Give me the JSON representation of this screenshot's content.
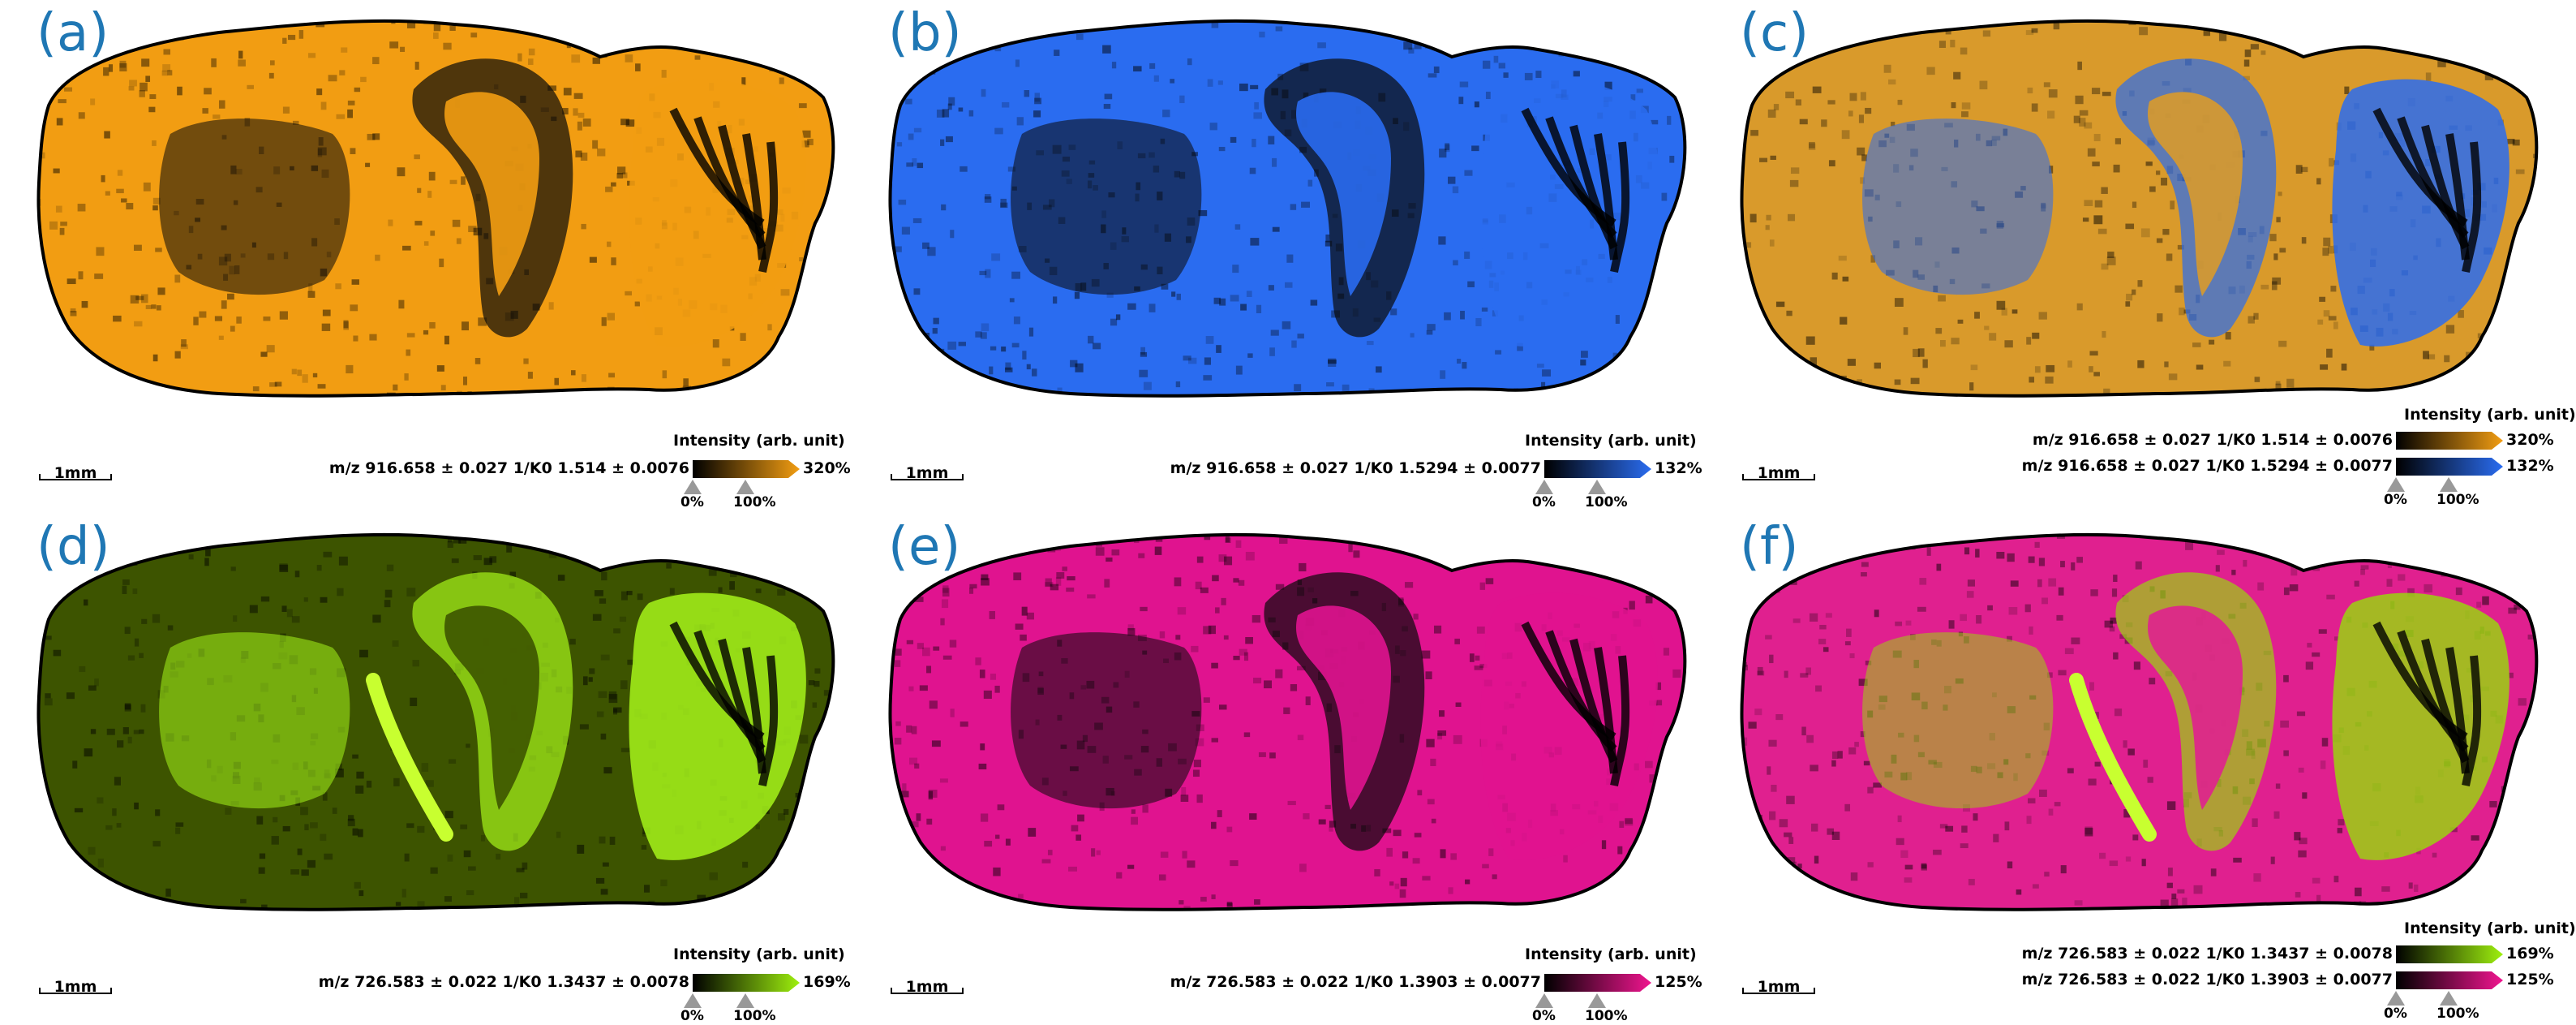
{
  "intensity_title": "Intensity (arb. unit)",
  "scalebar_label": "1mm",
  "panels": [
    {
      "label": "(a)",
      "colors": [
        "#f29d12"
      ],
      "rows": [
        {
          "text": "m/z 916.658 ± 0.027 1/K0 1.514 ± 0.0076",
          "color": "#f29d12",
          "max": "320%"
        }
      ],
      "tick_min": "0%",
      "tick_max": "100%"
    },
    {
      "label": "(b)",
      "colors": [
        "#2a6cf0"
      ],
      "rows": [
        {
          "text": "m/z 916.658 ± 0.027 1/K0 1.5294 ± 0.0077",
          "color": "#2a6cf0",
          "max": "132%"
        }
      ],
      "tick_min": "0%",
      "tick_max": "100%"
    },
    {
      "label": "(c)",
      "colors": [
        "#d99a2b",
        "#2a6cf0"
      ],
      "rows": [
        {
          "text": "m/z 916.658 ± 0.027 1/K0 1.514 ± 0.0076",
          "color": "#f29d12",
          "max": "320%"
        },
        {
          "text": "m/z 916.658 ± 0.027 1/K0 1.5294 ± 0.0077",
          "color": "#2a6cf0",
          "max": "132%"
        }
      ],
      "tick_min": "0%",
      "tick_max": "100%"
    },
    {
      "label": "(d)",
      "colors": [
        "#3d5400",
        "#a6f51a"
      ],
      "rows": [
        {
          "text": "m/z 726.583 ± 0.022 1/K0 1.3437 ± 0.0078",
          "color": "#9ef00e",
          "max": "169%"
        }
      ],
      "tick_min": "0%",
      "tick_max": "100%"
    },
    {
      "label": "(e)",
      "colors": [
        "#e0138f"
      ],
      "rows": [
        {
          "text": "m/z 726.583 ± 0.022 1/K0 1.3903 ± 0.0077",
          "color": "#f0158f",
          "max": "125%"
        }
      ],
      "tick_min": "0%",
      "tick_max": "100%"
    },
    {
      "label": "(f)",
      "colors": [
        "#e0208f",
        "#9ad410"
      ],
      "rows": [
        {
          "text": "m/z 726.583 ± 0.022 1/K0 1.3437 ± 0.0078",
          "color": "#9ef00e",
          "max": "169%"
        },
        {
          "text": "m/z 726.583 ± 0.022 1/K0 1.3903 ± 0.0077",
          "color": "#f0158f",
          "max": "125%"
        }
      ],
      "tick_min": "0%",
      "tick_max": "100%"
    }
  ]
}
